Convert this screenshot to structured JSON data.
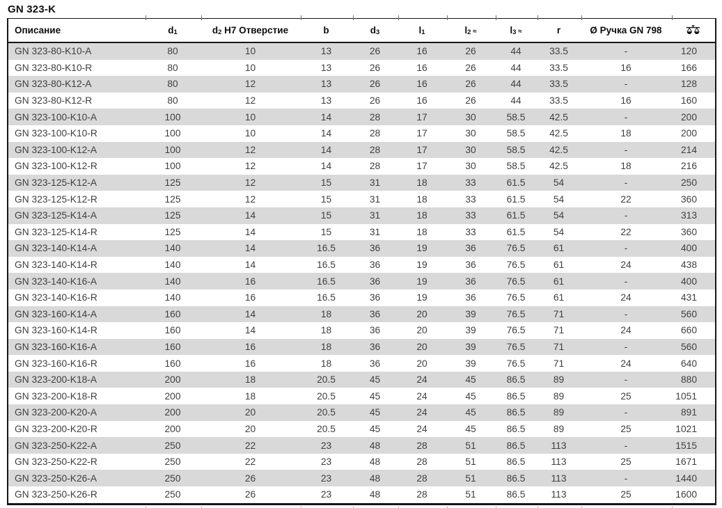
{
  "page_title": "GN 323-K",
  "colors": {
    "row_alt_background": "#d9d9d9",
    "table_border": "#161616",
    "body_text": "#3f3f3f",
    "header_text": "#0e0e0e"
  },
  "table": {
    "columns": [
      {
        "key": "description",
        "label": "Описание"
      },
      {
        "key": "d1",
        "label": "d",
        "sub": "1"
      },
      {
        "key": "d2",
        "label": "d",
        "sub": "2",
        "suffix": " H7 Отверстие"
      },
      {
        "key": "b",
        "label": "b"
      },
      {
        "key": "d3",
        "label": "d",
        "sub": "3"
      },
      {
        "key": "l1",
        "label": "l",
        "sub": "1"
      },
      {
        "key": "l2",
        "label": "l",
        "sub": "2",
        "approx": "≈"
      },
      {
        "key": "l3",
        "label": "l",
        "sub": "3",
        "approx": "≈"
      },
      {
        "key": "r",
        "label": "r"
      },
      {
        "key": "handle",
        "label": "Ø Ручка GN 798"
      },
      {
        "key": "weight",
        "icon": "scales-icon"
      }
    ],
    "rows": [
      [
        "GN 323-80-K10-A",
        "80",
        "10",
        "13",
        "26",
        "16",
        "26",
        "44",
        "33.5",
        "-",
        "120"
      ],
      [
        "GN 323-80-K10-R",
        "80",
        "10",
        "13",
        "26",
        "16",
        "26",
        "44",
        "33.5",
        "16",
        "166"
      ],
      [
        "GN 323-80-K12-A",
        "80",
        "12",
        "13",
        "26",
        "16",
        "26",
        "44",
        "33.5",
        "-",
        "128"
      ],
      [
        "GN 323-80-K12-R",
        "80",
        "12",
        "13",
        "26",
        "16",
        "26",
        "44",
        "33.5",
        "16",
        "160"
      ],
      [
        "GN 323-100-K10-A",
        "100",
        "10",
        "14",
        "28",
        "17",
        "30",
        "58.5",
        "42.5",
        "-",
        "200"
      ],
      [
        "GN 323-100-K10-R",
        "100",
        "10",
        "14",
        "28",
        "17",
        "30",
        "58.5",
        "42.5",
        "18",
        "200"
      ],
      [
        "GN 323-100-K12-A",
        "100",
        "12",
        "14",
        "28",
        "17",
        "30",
        "58.5",
        "42.5",
        "-",
        "214"
      ],
      [
        "GN 323-100-K12-R",
        "100",
        "12",
        "14",
        "28",
        "17",
        "30",
        "58.5",
        "42.5",
        "18",
        "216"
      ],
      [
        "GN 323-125-K12-A",
        "125",
        "12",
        "15",
        "31",
        "18",
        "33",
        "61.5",
        "54",
        "-",
        "250"
      ],
      [
        "GN 323-125-K12-R",
        "125",
        "12",
        "15",
        "31",
        "18",
        "33",
        "61.5",
        "54",
        "22",
        "360"
      ],
      [
        "GN 323-125-K14-A",
        "125",
        "14",
        "15",
        "31",
        "18",
        "33",
        "61.5",
        "54",
        "-",
        "313"
      ],
      [
        "GN 323-125-K14-R",
        "125",
        "14",
        "15",
        "31",
        "18",
        "33",
        "61.5",
        "54",
        "22",
        "360"
      ],
      [
        "GN 323-140-K14-A",
        "140",
        "14",
        "16.5",
        "36",
        "19",
        "36",
        "76.5",
        "61",
        "-",
        "400"
      ],
      [
        "GN 323-140-K14-R",
        "140",
        "14",
        "16.5",
        "36",
        "19",
        "36",
        "76.5",
        "61",
        "24",
        "438"
      ],
      [
        "GN 323-140-K16-A",
        "140",
        "16",
        "16.5",
        "36",
        "19",
        "36",
        "76.5",
        "61",
        "-",
        "400"
      ],
      [
        "GN 323-140-K16-R",
        "140",
        "16",
        "16.5",
        "36",
        "19",
        "36",
        "76.5",
        "61",
        "24",
        "431"
      ],
      [
        "GN 323-160-K14-A",
        "160",
        "14",
        "18",
        "36",
        "20",
        "39",
        "76.5",
        "71",
        "-",
        "560"
      ],
      [
        "GN 323-160-K14-R",
        "160",
        "14",
        "18",
        "36",
        "20",
        "39",
        "76.5",
        "71",
        "24",
        "660"
      ],
      [
        "GN 323-160-K16-A",
        "160",
        "16",
        "18",
        "36",
        "20",
        "39",
        "76.5",
        "71",
        "-",
        "560"
      ],
      [
        "GN 323-160-K16-R",
        "160",
        "16",
        "18",
        "36",
        "20",
        "39",
        "76.5",
        "71",
        "24",
        "640"
      ],
      [
        "GN 323-200-K18-A",
        "200",
        "18",
        "20.5",
        "45",
        "24",
        "45",
        "86.5",
        "89",
        "-",
        "880"
      ],
      [
        "GN 323-200-K18-R",
        "200",
        "18",
        "20.5",
        "45",
        "24",
        "45",
        "86.5",
        "89",
        "25",
        "1051"
      ],
      [
        "GN 323-200-K20-A",
        "200",
        "20",
        "20.5",
        "45",
        "24",
        "45",
        "86.5",
        "89",
        "-",
        "891"
      ],
      [
        "GN 323-200-K20-R",
        "200",
        "20",
        "20.5",
        "45",
        "24",
        "45",
        "86.5",
        "89",
        "25",
        "1021"
      ],
      [
        "GN 323-250-K22-A",
        "250",
        "22",
        "23",
        "48",
        "28",
        "51",
        "86.5",
        "113",
        "-",
        "1515"
      ],
      [
        "GN 323-250-K22-R",
        "250",
        "22",
        "23",
        "48",
        "28",
        "51",
        "86.5",
        "113",
        "25",
        "1671"
      ],
      [
        "GN 323-250-K26-A",
        "250",
        "26",
        "23",
        "48",
        "28",
        "51",
        "86.5",
        "113",
        "-",
        "1440"
      ],
      [
        "GN 323-250-K26-R",
        "250",
        "26",
        "23",
        "48",
        "28",
        "51",
        "86.5",
        "113",
        "25",
        "1600"
      ]
    ]
  }
}
